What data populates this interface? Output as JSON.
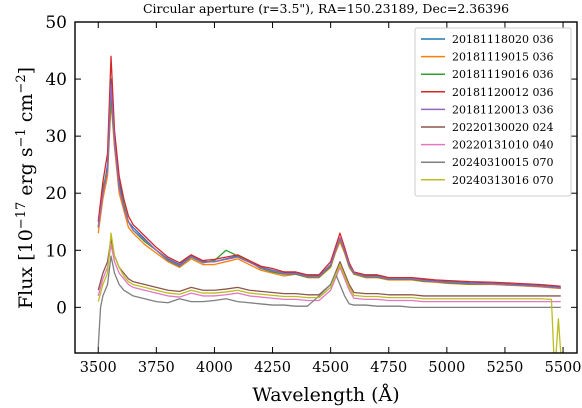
{
  "chart_data": {
    "type": "line",
    "title": "Circular aperture (r=3.5\"), RA=150.23189, Dec=2.36396",
    "xlabel": "Wavelength (Å)",
    "ylabel": "Flux [10^-17 erg s^-1 cm^-2]",
    "xlim": [
      3400,
      5560
    ],
    "ylim": [
      -8,
      50
    ],
    "xticks": [
      3500,
      3750,
      4000,
      4250,
      4500,
      4750,
      5000,
      5250,
      5500
    ],
    "yticks": [
      0,
      10,
      20,
      30,
      40,
      50
    ],
    "grid": false,
    "legend_position": "top-right",
    "series": [
      {
        "name": "20181118020 036",
        "color": "#1f77b4",
        "x": [
          3500,
          3520,
          3540,
          3555,
          3570,
          3590,
          3610,
          3630,
          3650,
          3700,
          3750,
          3800,
          3850,
          3900,
          3950,
          4000,
          4050,
          4100,
          4150,
          4200,
          4250,
          4300,
          4350,
          4400,
          4450,
          4500,
          4520,
          4540,
          4560,
          4580,
          4600,
          4650,
          4700,
          4750,
          4800,
          4850,
          4900,
          4950,
          5000,
          5100,
          5200,
          5300,
          5400,
          5460,
          5490
        ],
        "y": [
          14,
          20,
          25,
          40,
          30,
          22,
          18,
          15,
          14,
          12,
          10,
          8.5,
          7.5,
          9,
          8,
          8,
          8.5,
          9,
          8,
          7,
          6.5,
          6,
          6,
          5.5,
          5.5,
          7.5,
          10,
          12,
          10,
          7.5,
          6,
          5.5,
          5.5,
          5,
          5,
          5,
          4.8,
          4.6,
          4.5,
          4.3,
          4.2,
          4,
          3.8,
          3.6,
          3.5
        ]
      },
      {
        "name": "20181119015 036",
        "color": "#ff7f0e",
        "x": [
          3500,
          3520,
          3540,
          3555,
          3570,
          3590,
          3610,
          3630,
          3650,
          3700,
          3750,
          3800,
          3850,
          3900,
          3950,
          4000,
          4050,
          4100,
          4150,
          4200,
          4250,
          4300,
          4350,
          4400,
          4450,
          4500,
          4520,
          4540,
          4560,
          4580,
          4600,
          4650,
          4700,
          4750,
          4800,
          4850,
          4900,
          4950,
          5000,
          5100,
          5200,
          5300,
          5400,
          5460,
          5490
        ],
        "y": [
          13,
          19,
          23,
          36,
          28,
          20,
          17,
          14,
          13,
          11,
          9.5,
          8,
          7,
          8.5,
          7.5,
          7.5,
          8,
          8.5,
          7.5,
          6.5,
          6,
          5.5,
          5.8,
          5.2,
          5.2,
          7,
          9.5,
          11.5,
          9.5,
          7,
          5.8,
          5.2,
          5.2,
          4.8,
          4.8,
          4.8,
          4.5,
          4.4,
          4.2,
          4,
          4,
          3.8,
          3.6,
          3.4,
          3.3
        ]
      },
      {
        "name": "20181119016 036",
        "color": "#2ca02c",
        "x": [
          3500,
          3520,
          3540,
          3555,
          3570,
          3590,
          3610,
          3630,
          3650,
          3700,
          3750,
          3800,
          3850,
          3900,
          3950,
          4000,
          4050,
          4100,
          4150,
          4200,
          4250,
          4300,
          4350,
          4400,
          4450,
          4500,
          4520,
          4540,
          4560,
          4580,
          4600,
          4650,
          4700,
          4750,
          4800,
          4850,
          4900,
          4950,
          5000,
          5100,
          5200,
          5300,
          5400,
          5460,
          5490
        ],
        "y": [
          14,
          21,
          24,
          37,
          29,
          21,
          18,
          15,
          13.5,
          11.5,
          10,
          8.2,
          7.2,
          8.8,
          7.8,
          8.2,
          10,
          9,
          8,
          6.8,
          6.2,
          5.8,
          5.8,
          5.3,
          5.3,
          7.2,
          9.8,
          12,
          9.8,
          7.2,
          5.9,
          5.3,
          5.3,
          4.9,
          4.9,
          4.9,
          4.6,
          4.5,
          4.3,
          4.1,
          4.1,
          3.9,
          3.7,
          3.5,
          3.4
        ]
      },
      {
        "name": "20181120012 036",
        "color": "#d62728",
        "x": [
          3500,
          3520,
          3540,
          3555,
          3570,
          3590,
          3610,
          3630,
          3650,
          3700,
          3750,
          3800,
          3850,
          3900,
          3950,
          4000,
          4050,
          4100,
          4150,
          4200,
          4250,
          4300,
          4350,
          4400,
          4450,
          4500,
          4520,
          4540,
          4560,
          4580,
          4600,
          4650,
          4700,
          4750,
          4800,
          4850,
          4900,
          4950,
          5000,
          5100,
          5200,
          5300,
          5400,
          5460,
          5490
        ],
        "y": [
          15,
          22,
          27,
          44,
          31,
          23,
          19,
          16,
          14.5,
          12.5,
          10.5,
          8.8,
          7.8,
          9.2,
          8.2,
          8.4,
          8.8,
          9.2,
          8.2,
          7.2,
          6.8,
          6.2,
          6.2,
          5.7,
          5.7,
          8,
          10.5,
          13,
          10.5,
          7.8,
          6.2,
          5.7,
          5.7,
          5.2,
          5.2,
          5.2,
          5,
          4.8,
          4.7,
          4.5,
          4.4,
          4.2,
          4,
          3.8,
          3.7
        ]
      },
      {
        "name": "20181120013 036",
        "color": "#9467bd",
        "x": [
          3500,
          3520,
          3540,
          3555,
          3570,
          3590,
          3610,
          3630,
          3650,
          3700,
          3750,
          3800,
          3850,
          3900,
          3950,
          4000,
          4050,
          4100,
          4150,
          4200,
          4250,
          4300,
          4350,
          4400,
          4450,
          4500,
          4520,
          4540,
          4560,
          4580,
          4600,
          4650,
          4700,
          4750,
          4800,
          4850,
          4900,
          4950,
          5000,
          5100,
          5200,
          5300,
          5400,
          5460,
          5490
        ],
        "y": [
          14,
          20,
          24,
          39,
          29,
          21,
          17.5,
          15,
          13.5,
          11.8,
          10,
          8.3,
          7.3,
          8.9,
          7.9,
          8,
          8.4,
          8.8,
          7.9,
          6.9,
          6.4,
          5.9,
          5.9,
          5.4,
          5.4,
          7.4,
          9.9,
          12.2,
          9.9,
          7.4,
          6,
          5.4,
          5.4,
          5,
          5,
          5,
          4.7,
          4.5,
          4.4,
          4.2,
          4.1,
          3.9,
          3.7,
          3.5,
          3.4
        ]
      },
      {
        "name": "20220130020 024",
        "color": "#8c564b",
        "x": [
          3500,
          3520,
          3540,
          3555,
          3570,
          3590,
          3610,
          3630,
          3650,
          3700,
          3750,
          3800,
          3850,
          3900,
          3950,
          4000,
          4050,
          4100,
          4150,
          4200,
          4250,
          4300,
          4350,
          4400,
          4450,
          4500,
          4520,
          4540,
          4560,
          4580,
          4600,
          4650,
          4700,
          4750,
          4800,
          4850,
          4900,
          4950,
          5000,
          5100,
          5200,
          5300,
          5400,
          5460,
          5490
        ],
        "y": [
          3,
          6,
          8,
          12,
          9,
          7,
          6,
          5,
          4.5,
          4,
          3.5,
          3,
          2.8,
          3.5,
          3,
          3,
          3.2,
          3.5,
          3,
          2.8,
          2.6,
          2.4,
          2.4,
          2.2,
          2.2,
          4,
          6,
          8,
          6,
          4,
          2.6,
          2.4,
          2.4,
          2.2,
          2.2,
          2.2,
          2,
          2,
          2,
          2,
          2,
          2,
          2,
          2,
          2
        ]
      },
      {
        "name": "20220131010 040",
        "color": "#e377c2",
        "x": [
          3500,
          3520,
          3540,
          3555,
          3570,
          3590,
          3610,
          3630,
          3650,
          3700,
          3750,
          3800,
          3850,
          3900,
          3950,
          4000,
          4050,
          4100,
          4150,
          4200,
          4250,
          4300,
          4350,
          4400,
          4450,
          4500,
          4520,
          4540,
          4560,
          4580,
          4600,
          4650,
          4700,
          4750,
          4800,
          4850,
          4900,
          4950,
          5000,
          5100,
          5200,
          5300,
          5400,
          5460,
          5490
        ],
        "y": [
          2,
          5,
          7,
          11,
          8,
          6,
          5,
          4,
          3.5,
          3,
          2.5,
          2,
          1.8,
          2.5,
          2,
          2,
          2.2,
          2.5,
          2,
          1.8,
          1.6,
          1.4,
          1.4,
          1.2,
          1.2,
          3,
          5,
          7,
          5,
          3,
          1.6,
          1.4,
          1.4,
          1.2,
          1.2,
          1.2,
          1,
          1,
          1,
          1,
          1,
          1,
          1,
          1,
          1
        ]
      },
      {
        "name": "20240310015 070",
        "color": "#7f7f7f",
        "x": [
          3500,
          3510,
          3520,
          3540,
          3555,
          3570,
          3590,
          3610,
          3630,
          3650,
          3700,
          3750,
          3800,
          3850,
          3900,
          3950,
          4000,
          4050,
          4100,
          4150,
          4200,
          4250,
          4300,
          4350,
          4400,
          4450,
          4500,
          4520,
          4540,
          4560,
          4580,
          4600,
          4650,
          4700,
          4750,
          4800,
          4850,
          4900,
          4950,
          5000,
          5100,
          5200,
          5300,
          5400,
          5460,
          5490
        ],
        "y": [
          -7,
          0,
          2,
          4,
          9,
          6,
          4,
          3,
          2.5,
          2,
          1.5,
          1,
          0.8,
          1.5,
          1,
          1,
          1.2,
          1.5,
          1,
          0.8,
          0.6,
          0.4,
          0.4,
          0.2,
          0.2,
          2,
          4,
          6,
          4,
          2,
          0.6,
          0.4,
          0.4,
          0.2,
          0.2,
          0.2,
          0,
          0,
          0,
          0,
          0,
          0,
          0,
          0,
          0,
          0
        ]
      },
      {
        "name": "20240313016 070",
        "color": "#bcbd22",
        "x": [
          3500,
          3520,
          3540,
          3555,
          3570,
          3590,
          3610,
          3630,
          3650,
          3700,
          3750,
          3800,
          3850,
          3900,
          3950,
          4000,
          4050,
          4100,
          4150,
          4200,
          4250,
          4300,
          4350,
          4400,
          4450,
          4500,
          4520,
          4540,
          4560,
          4580,
          4600,
          4650,
          4700,
          4750,
          4800,
          4850,
          4900,
          4950,
          5000,
          5100,
          5200,
          5300,
          5400,
          5450,
          5460,
          5470,
          5480,
          5490
        ],
        "y": [
          1,
          4,
          6,
          13,
          9,
          7,
          5.5,
          4.5,
          4,
          3.5,
          3,
          2.5,
          2.3,
          3,
          2.5,
          2.5,
          2.7,
          3,
          2.5,
          2.3,
          2.1,
          1.9,
          1.9,
          1.7,
          1.7,
          3.5,
          5.5,
          7.5,
          5.5,
          3.5,
          2.1,
          1.9,
          1.9,
          1.7,
          1.7,
          1.7,
          1.5,
          1.5,
          1.5,
          1.5,
          1.5,
          1.5,
          1.5,
          1.4,
          -8,
          -8,
          -2,
          -8
        ]
      }
    ]
  }
}
